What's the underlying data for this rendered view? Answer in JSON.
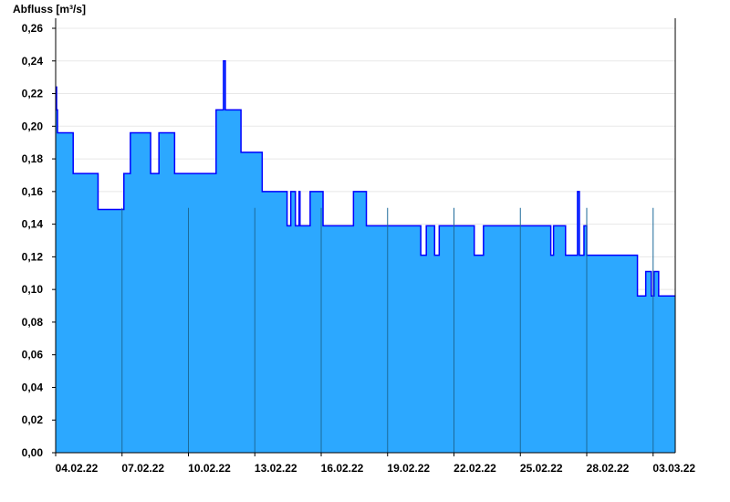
{
  "chart_data": {
    "type": "area",
    "ylabel": "Abfluss [m³/s]",
    "xlabel": "",
    "ylim": [
      0,
      0.26
    ],
    "xlim": [
      "2022-02-04 00:00",
      "2022-03-04 00:00"
    ],
    "grid": true,
    "yticks": [
      "0,00",
      "0,02",
      "0,04",
      "0,06",
      "0,08",
      "0,10",
      "0,12",
      "0,14",
      "0,16",
      "0,18",
      "0,20",
      "0,22",
      "0,24",
      "0,26"
    ],
    "xticks": [
      {
        "date": "2022-02-04 00:00",
        "label": "04.02.22"
      },
      {
        "date": "2022-02-07 00:00",
        "label": "07.02.22"
      },
      {
        "date": "2022-02-10 00:00",
        "label": "10.02.22"
      },
      {
        "date": "2022-02-13 00:00",
        "label": "13.02.22"
      },
      {
        "date": "2022-02-16 00:00",
        "label": "16.02.22"
      },
      {
        "date": "2022-02-19 00:00",
        "label": "19.02.22"
      },
      {
        "date": "2022-02-22 00:00",
        "label": "22.02.22"
      },
      {
        "date": "2022-02-25 00:00",
        "label": "25.02.22"
      },
      {
        "date": "2022-02-28 00:00",
        "label": "28.02.22"
      },
      {
        "date": "2022-03-03 00:00",
        "label": "03.03.22"
      }
    ],
    "fill_color": "#2ca8ff",
    "line_color": "#0000ff",
    "points": [
      [
        "2022-02-04 00:00",
        0.224
      ],
      [
        "2022-02-04 01:00",
        0.21
      ],
      [
        "2022-02-04 02:00",
        0.196
      ],
      [
        "2022-02-04 19:00",
        0.171
      ],
      [
        "2022-02-05 22:00",
        0.149
      ],
      [
        "2022-02-07 02:00",
        0.171
      ],
      [
        "2022-02-07 09:00",
        0.196
      ],
      [
        "2022-02-08 07:00",
        0.171
      ],
      [
        "2022-02-08 16:00",
        0.196
      ],
      [
        "2022-02-09 09:00",
        0.171
      ],
      [
        "2022-02-11 06:00",
        0.21
      ],
      [
        "2022-02-11 14:00",
        0.24
      ],
      [
        "2022-02-11 16:00",
        0.21
      ],
      [
        "2022-02-12 09:00",
        0.184
      ],
      [
        "2022-02-13 08:00",
        0.16
      ],
      [
        "2022-02-14 11:00",
        0.139
      ],
      [
        "2022-02-14 15:00",
        0.16
      ],
      [
        "2022-02-14 20:00",
        0.139
      ],
      [
        "2022-02-15 00:00",
        0.16
      ],
      [
        "2022-02-15 01:00",
        0.139
      ],
      [
        "2022-02-15 12:00",
        0.16
      ],
      [
        "2022-02-16 02:00",
        0.139
      ],
      [
        "2022-02-17 11:00",
        0.16
      ],
      [
        "2022-02-18 01:00",
        0.139
      ],
      [
        "2022-02-20 12:00",
        0.121
      ],
      [
        "2022-02-20 18:00",
        0.139
      ],
      [
        "2022-02-21 03:00",
        0.121
      ],
      [
        "2022-02-21 08:00",
        0.139
      ],
      [
        "2022-02-22 22:00",
        0.121
      ],
      [
        "2022-02-23 08:00",
        0.139
      ],
      [
        "2022-02-26 09:00",
        0.121
      ],
      [
        "2022-02-26 12:00",
        0.139
      ],
      [
        "2022-02-27 01:00",
        0.121
      ],
      [
        "2022-02-27 14:00",
        0.16
      ],
      [
        "2022-02-27 16:00",
        0.121
      ],
      [
        "2022-02-27 21:00",
        0.139
      ],
      [
        "2022-02-28 00:00",
        0.121
      ],
      [
        "2022-03-02 07:00",
        0.096
      ],
      [
        "2022-03-02 16:00",
        0.111
      ],
      [
        "2022-03-02 22:00",
        0.096
      ],
      [
        "2022-03-03 01:00",
        0.111
      ],
      [
        "2022-03-03 06:00",
        0.096
      ],
      [
        "2022-03-04 00:00",
        0.096
      ]
    ]
  }
}
